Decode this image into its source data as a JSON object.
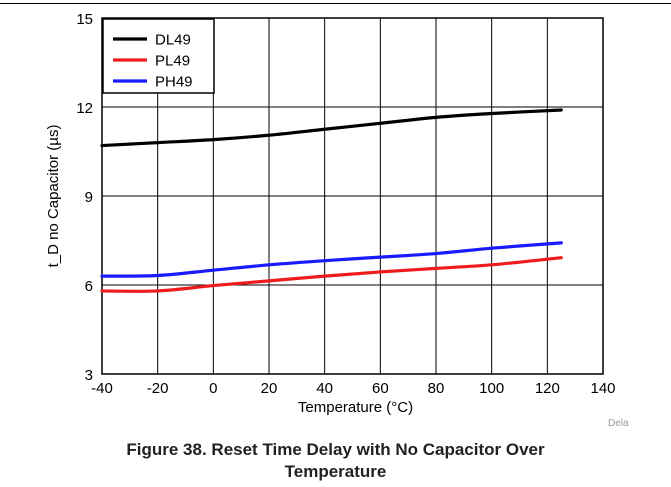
{
  "figure_caption": {
    "line1": "Figure 38. Reset Time Delay with No Capacitor Over",
    "line2": "Temperature"
  },
  "credit": "Dela",
  "colors": {
    "DL49": "#000000",
    "PL49": "#ee1c1c",
    "PH49": "#1a1aff"
  },
  "chart_data": {
    "type": "line",
    "title": "",
    "xlabel": "Temperature (°C)",
    "ylabel": "t_D no Capacitor (µs)",
    "xlim": [
      -40,
      140
    ],
    "ylim": [
      3,
      15
    ],
    "x_ticks": [
      -40,
      -20,
      0,
      20,
      40,
      60,
      80,
      100,
      120,
      140
    ],
    "y_ticks": [
      3,
      6,
      9,
      12,
      15
    ],
    "x_tick_labels": [
      "-40",
      "-20",
      "0",
      "20",
      "40",
      "60",
      "80",
      "100",
      "120",
      "140"
    ],
    "y_tick_labels": [
      "3",
      "6",
      "9",
      "12",
      "15"
    ],
    "grid": true,
    "legend_position": "top-left",
    "series": [
      {
        "name": "DL49",
        "color": "#000000",
        "x": [
          -40,
          -20,
          0,
          20,
          40,
          60,
          80,
          100,
          125
        ],
        "y": [
          10.7,
          10.8,
          10.9,
          11.05,
          11.25,
          11.45,
          11.65,
          11.78,
          11.9
        ]
      },
      {
        "name": "PL49",
        "color": "#ee1c1c",
        "x": [
          -40,
          -20,
          0,
          20,
          40,
          60,
          80,
          100,
          125
        ],
        "y": [
          5.8,
          5.8,
          5.98,
          6.14,
          6.3,
          6.44,
          6.56,
          6.68,
          6.92
        ]
      },
      {
        "name": "PH49",
        "color": "#1a1aff",
        "x": [
          -40,
          -20,
          0,
          20,
          40,
          60,
          80,
          100,
          125
        ],
        "y": [
          6.3,
          6.32,
          6.5,
          6.68,
          6.82,
          6.94,
          7.06,
          7.24,
          7.42
        ]
      }
    ]
  }
}
